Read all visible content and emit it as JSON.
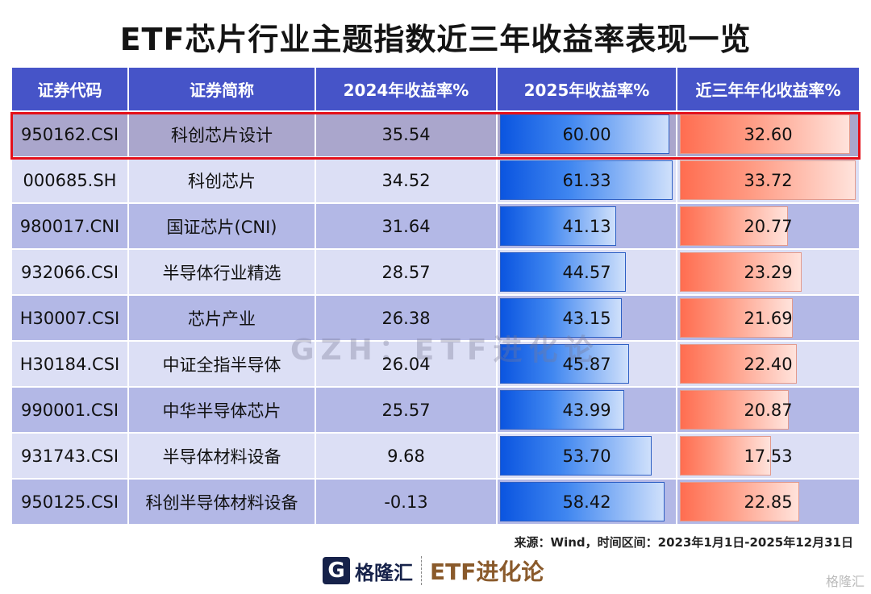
{
  "title": "ETF芯片行业主题指数近三年收益率表现一览",
  "chart_data": {
    "type": "table",
    "columns": [
      "证券代码",
      "证券简称",
      "2024年收益率%",
      "2025年收益率%",
      "近三年年化收益率%"
    ],
    "highlighted_row": 0,
    "colors": {
      "header": "#4654c8",
      "row_odd": "#b3b8e6",
      "row_even": "#dcdff5",
      "bar_2025": "#0b55e0",
      "bar_3y": "#ff6d50",
      "highlight": "#e4101a"
    },
    "rows": [
      {
        "code": "950162.CSI",
        "name": "科创芯片设计",
        "r2024": "35.54",
        "r2025": "60.00",
        "r3y": "32.60"
      },
      {
        "code": "000685.SH",
        "name": "科创芯片",
        "r2024": "34.52",
        "r2025": "61.33",
        "r3y": "33.72"
      },
      {
        "code": "980017.CNI",
        "name": "国证芯片(CNI)",
        "r2024": "31.64",
        "r2025": "41.13",
        "r3y": "20.77"
      },
      {
        "code": "932066.CSI",
        "name": "半导体行业精选",
        "r2024": "28.57",
        "r2025": "44.57",
        "r3y": "23.29"
      },
      {
        "code": "H30007.CSI",
        "name": "芯片产业",
        "r2024": "26.38",
        "r2025": "43.15",
        "r3y": "21.69"
      },
      {
        "code": "H30184.CSI",
        "name": "中证全指半导体",
        "r2024": "26.04",
        "r2025": "45.87",
        "r3y": "22.40"
      },
      {
        "code": "990001.CSI",
        "name": "中华半导体芯片",
        "r2024": "25.57",
        "r2025": "43.99",
        "r3y": "20.87"
      },
      {
        "code": "931743.CSI",
        "name": "半导体材料设备",
        "r2024": "9.68",
        "r2025": "53.70",
        "r3y": "17.53"
      },
      {
        "code": "950125.CSI",
        "name": "科创半导体材料设备",
        "r2024": "-0.13",
        "r2025": "58.42",
        "r3y": "22.85"
      }
    ]
  },
  "watermark": "GZH：ETF进化论",
  "source": "来源：Wind，时间区间：2023年1月1日-2025年12月31日",
  "footer": {
    "logo_glyph": "G",
    "logo_name": "格隆汇",
    "brand": "ETF进化论",
    "corner": "格隆汇"
  }
}
